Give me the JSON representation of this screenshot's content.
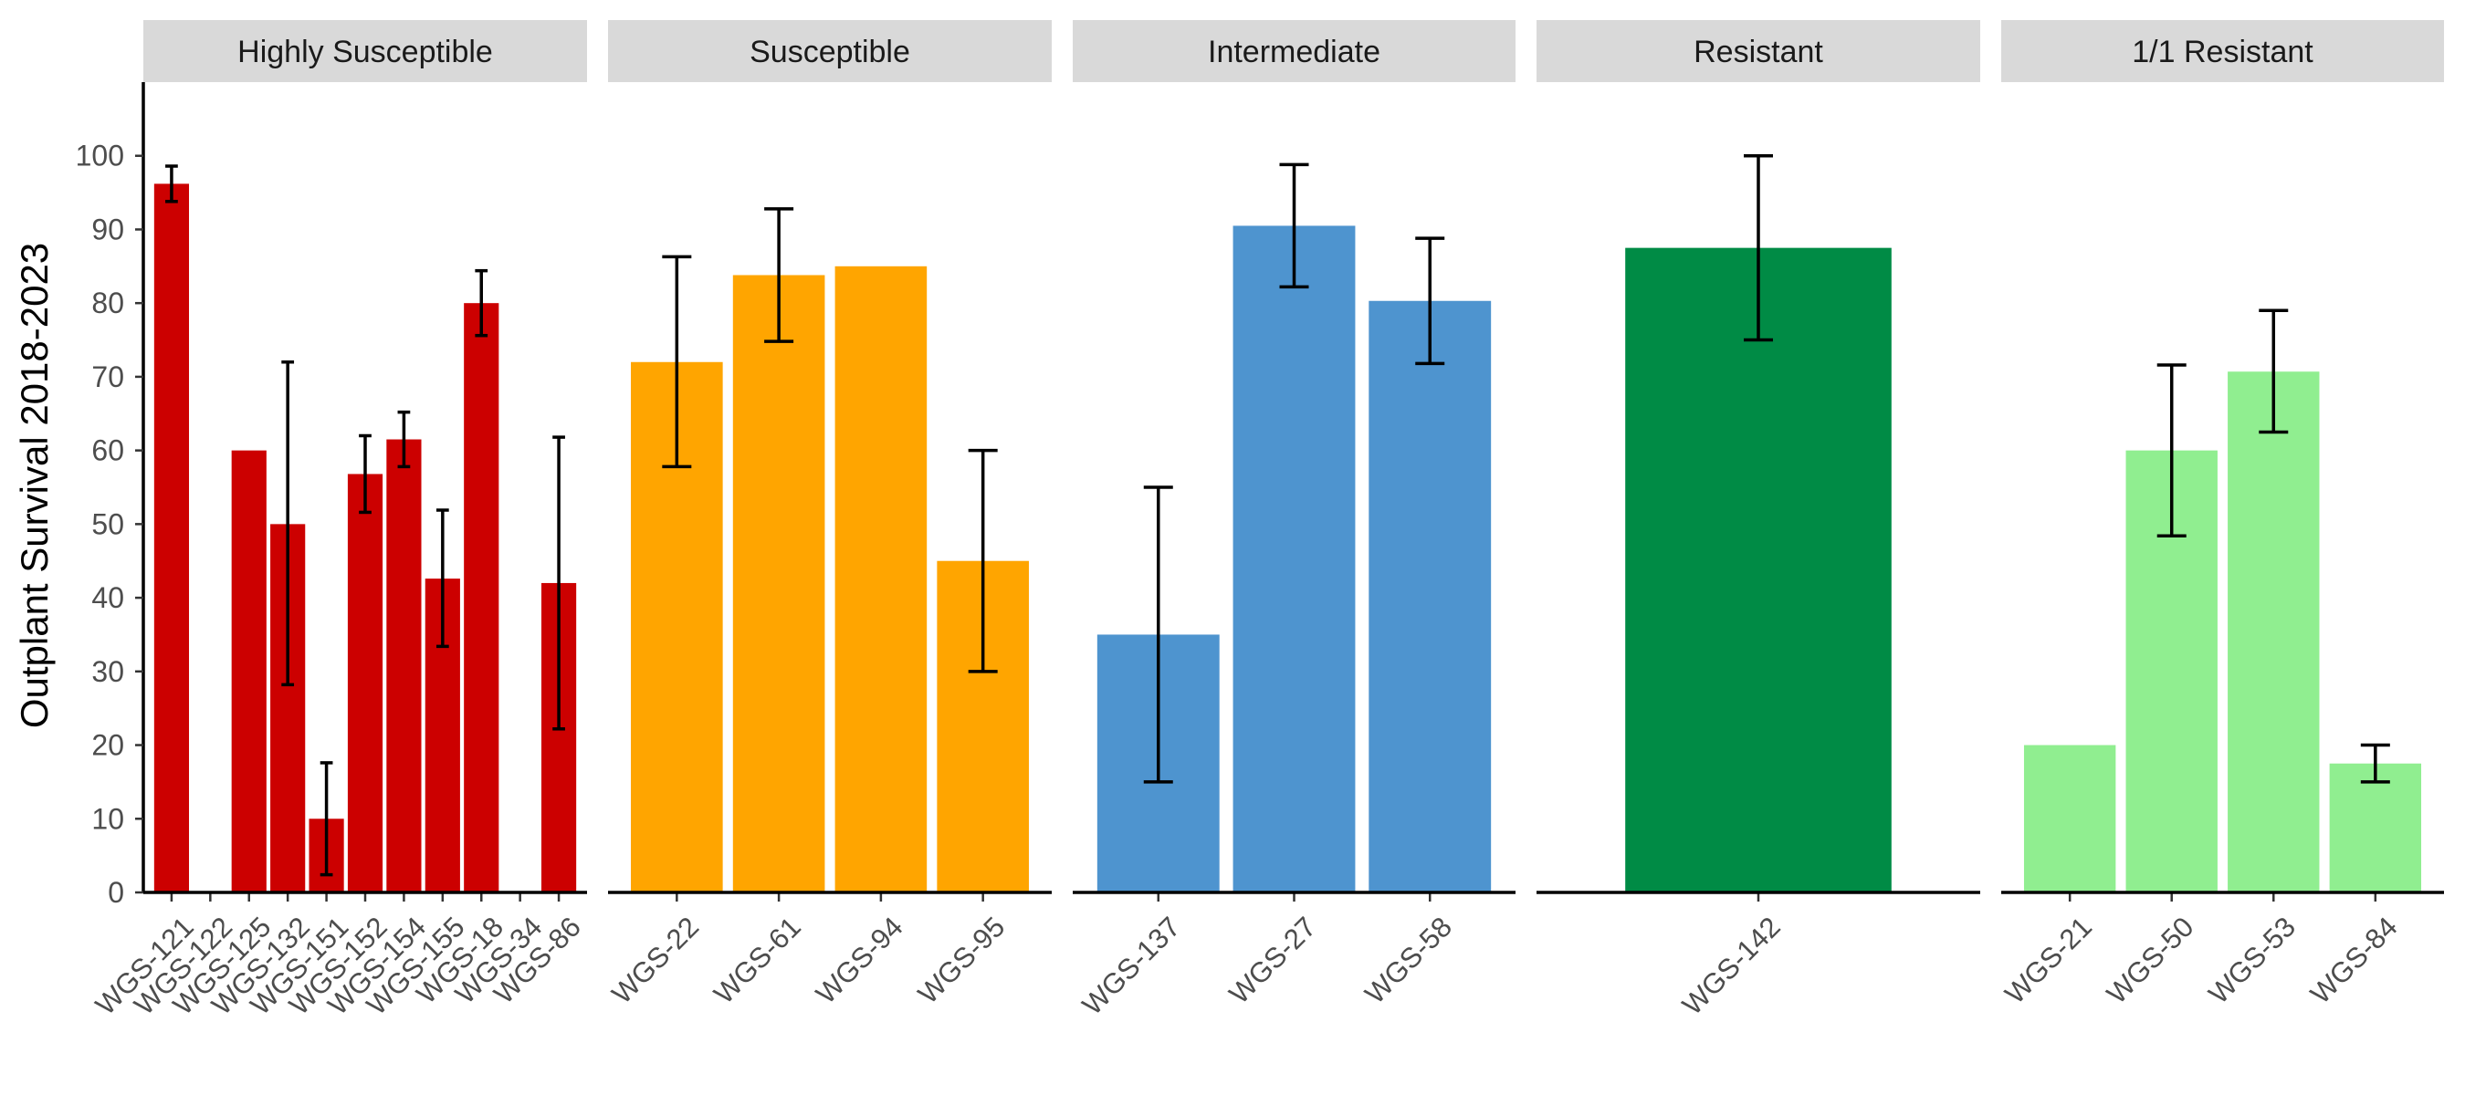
{
  "chart_data": {
    "type": "bar",
    "ylabel": "Outplant Survival 2018-2023",
    "xlabel": "",
    "ylim": [
      0,
      110
    ],
    "yticks": [
      0,
      10,
      20,
      30,
      40,
      50,
      60,
      70,
      80,
      90,
      100
    ],
    "grid": false,
    "legend": "none",
    "panels": [
      {
        "title": "Highly Susceptible",
        "color": "#CC0000",
        "bars": [
          {
            "category": "WGS-121",
            "value": 96.2,
            "err_low": 93.8,
            "err_high": 98.6
          },
          {
            "category": "WGS-122",
            "value": 0,
            "err_low": null,
            "err_high": null
          },
          {
            "category": "WGS-125",
            "value": 60,
            "err_low": null,
            "err_high": null
          },
          {
            "category": "WGS-132",
            "value": 50,
            "err_low": 28.2,
            "err_high": 72
          },
          {
            "category": "WGS-151",
            "value": 10,
            "err_low": 2.4,
            "err_high": 17.6
          },
          {
            "category": "WGS-152",
            "value": 56.8,
            "err_low": 51.6,
            "err_high": 62
          },
          {
            "category": "WGS-154",
            "value": 61.5,
            "err_low": 57.8,
            "err_high": 65.2
          },
          {
            "category": "WGS-155",
            "value": 42.6,
            "err_low": 33.4,
            "err_high": 51.9
          },
          {
            "category": "WGS-18",
            "value": 80,
            "err_low": 75.6,
            "err_high": 84.4
          },
          {
            "category": "WGS-34",
            "value": 0,
            "err_low": null,
            "err_high": null
          },
          {
            "category": "WGS-86",
            "value": 42,
            "err_low": 22.2,
            "err_high": 61.8
          }
        ]
      },
      {
        "title": "Susceptible",
        "color": "#FFA500",
        "bars": [
          {
            "category": "WGS-22",
            "value": 72,
            "err_low": 57.8,
            "err_high": 86.3
          },
          {
            "category": "WGS-61",
            "value": 83.8,
            "err_low": 74.8,
            "err_high": 92.8
          },
          {
            "category": "WGS-94",
            "value": 85,
            "err_low": null,
            "err_high": null
          },
          {
            "category": "WGS-95",
            "value": 45,
            "err_low": 30,
            "err_high": 60
          }
        ]
      },
      {
        "title": "Intermediate",
        "color": "#4E94CF",
        "bars": [
          {
            "category": "WGS-137",
            "value": 35,
            "err_low": 15,
            "err_high": 55
          },
          {
            "category": "WGS-27",
            "value": 90.5,
            "err_low": 82.2,
            "err_high": 98.8
          },
          {
            "category": "WGS-58",
            "value": 80.3,
            "err_low": 71.8,
            "err_high": 88.8
          }
        ]
      },
      {
        "title": "Resistant",
        "color": "#008B45",
        "bars": [
          {
            "category": "WGS-142",
            "value": 87.5,
            "err_low": 75,
            "err_high": 100
          }
        ]
      },
      {
        "title": "1/1 Resistant",
        "color": "#90EE90",
        "bars": [
          {
            "category": "WGS-21",
            "value": 20,
            "err_low": null,
            "err_high": null
          },
          {
            "category": "WGS-50",
            "value": 60,
            "err_low": 48.4,
            "err_high": 71.6
          },
          {
            "category": "WGS-53",
            "value": 70.7,
            "err_low": 62.5,
            "err_high": 79
          },
          {
            "category": "WGS-84",
            "value": 17.5,
            "err_low": 15,
            "err_high": 20
          }
        ]
      }
    ]
  }
}
